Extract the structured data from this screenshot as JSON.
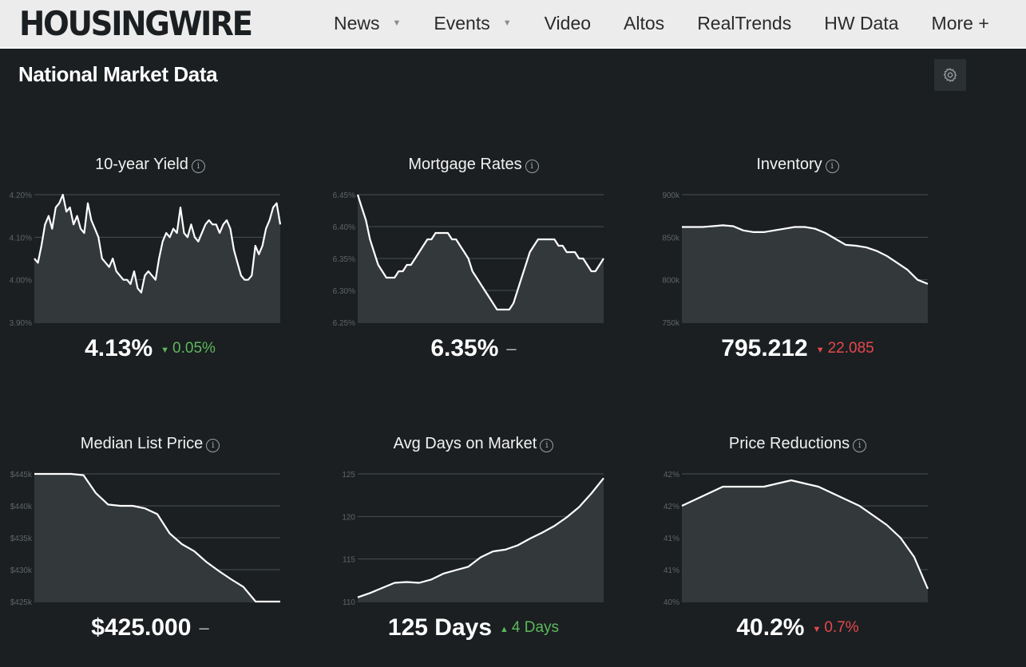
{
  "header": {
    "logo": "HOUSINGWIRE",
    "nav": [
      {
        "label": "News",
        "caret": "▼"
      },
      {
        "label": "Events",
        "caret": "▼"
      },
      {
        "label": "Video",
        "caret": ""
      },
      {
        "label": "Altos",
        "caret": ""
      },
      {
        "label": "RealTrends",
        "caret": ""
      },
      {
        "label": "HW Data",
        "caret": ""
      },
      {
        "label": "More +",
        "caret": ""
      }
    ]
  },
  "section": {
    "title": "National Market Data",
    "settings_icon": "gear-icon"
  },
  "colors": {
    "up": "#5cb85c",
    "down": "#e5484d",
    "line": "#ffffff",
    "area": "#33383b",
    "grid": "#4a4f52"
  },
  "cards": [
    {
      "title": "10-year Yield",
      "info": "i",
      "value": "4.13%",
      "change_arrow": "▼",
      "change_text": "0.05%",
      "trend": "up"
    },
    {
      "title": "Mortgage Rates",
      "info": "i",
      "value": "6.35%",
      "change_arrow": "",
      "change_text": "–",
      "trend": "flat"
    },
    {
      "title": "Inventory",
      "info": "i",
      "value": "795.212",
      "change_arrow": "▼",
      "change_text": "22.085",
      "trend": "down"
    },
    {
      "title": "Median List Price",
      "info": "i",
      "value": "$425.000",
      "change_arrow": "",
      "change_text": "–",
      "trend": "flat"
    },
    {
      "title": "Avg Days on Market",
      "info": "i",
      "value": "125 Days",
      "change_arrow": "▲",
      "change_text": "4 Days",
      "trend": "up"
    },
    {
      "title": "Price Reductions",
      "info": "i",
      "value": "40.2%",
      "change_arrow": "▼",
      "change_text": "0.7%",
      "trend": "down"
    }
  ],
  "chart_data": [
    {
      "type": "area",
      "title": "10-year Yield",
      "yticks": [
        "4.20%",
        "4.10%",
        "4.00%",
        "3.90%"
      ],
      "ylim": [
        3.9,
        4.2
      ],
      "values": [
        4.05,
        4.04,
        4.08,
        4.13,
        4.15,
        4.12,
        4.17,
        4.18,
        4.2,
        4.16,
        4.17,
        4.13,
        4.15,
        4.12,
        4.11,
        4.18,
        4.14,
        4.12,
        4.1,
        4.05,
        4.04,
        4.03,
        4.05,
        4.02,
        4.01,
        4.0,
        4.0,
        3.99,
        4.02,
        3.98,
        3.97,
        4.01,
        4.02,
        4.01,
        4.0,
        4.05,
        4.09,
        4.11,
        4.1,
        4.12,
        4.11,
        4.17,
        4.11,
        4.1,
        4.13,
        4.1,
        4.09,
        4.11,
        4.13,
        4.14,
        4.13,
        4.13,
        4.11,
        4.13,
        4.14,
        4.12,
        4.07,
        4.04,
        4.01,
        4.0,
        4.0,
        4.01,
        4.08,
        4.06,
        4.08,
        4.12,
        4.14,
        4.17,
        4.18,
        4.13
      ]
    },
    {
      "type": "area",
      "title": "Mortgage Rates",
      "yticks": [
        "6.45%",
        "6.40%",
        "6.35%",
        "6.30%",
        "6.25%"
      ],
      "ylim": [
        6.25,
        6.45
      ],
      "values": [
        6.45,
        6.43,
        6.41,
        6.38,
        6.36,
        6.34,
        6.33,
        6.32,
        6.32,
        6.32,
        6.33,
        6.33,
        6.34,
        6.34,
        6.35,
        6.36,
        6.37,
        6.38,
        6.38,
        6.39,
        6.39,
        6.39,
        6.39,
        6.38,
        6.38,
        6.37,
        6.36,
        6.35,
        6.33,
        6.32,
        6.31,
        6.3,
        6.29,
        6.28,
        6.27,
        6.27,
        6.27,
        6.27,
        6.28,
        6.3,
        6.32,
        6.34,
        6.36,
        6.37,
        6.38,
        6.38,
        6.38,
        6.38,
        6.38,
        6.37,
        6.37,
        6.36,
        6.36,
        6.36,
        6.35,
        6.35,
        6.34,
        6.33,
        6.33,
        6.34,
        6.35
      ]
    },
    {
      "type": "area",
      "title": "Inventory",
      "yticks": [
        "900k",
        "850k",
        "800k",
        "750k"
      ],
      "ylim": [
        750000,
        900000
      ],
      "values": [
        862000,
        862000,
        862000,
        863000,
        864000,
        863000,
        858000,
        856000,
        856000,
        858000,
        860000,
        862000,
        862000,
        860000,
        855000,
        848000,
        841000,
        840000,
        838000,
        834000,
        828000,
        820000,
        812000,
        800000,
        795212
      ]
    },
    {
      "type": "area",
      "title": "Median List Price",
      "yticks": [
        "$445k",
        "$440k",
        "$435k",
        "$430k",
        "$425k"
      ],
      "ylim": [
        425000,
        445000
      ],
      "values": [
        445000,
        445000,
        445000,
        445000,
        444800,
        442000,
        440200,
        440000,
        440000,
        439600,
        438700,
        435700,
        434000,
        432900,
        431200,
        429800,
        428500,
        427300,
        425000,
        425000,
        425000
      ]
    },
    {
      "type": "area",
      "title": "Avg Days on Market",
      "yticks": [
        "125",
        "120",
        "115",
        "110"
      ],
      "ylim": [
        110,
        125
      ],
      "values": [
        110.5,
        111.0,
        111.6,
        112.2,
        112.3,
        112.2,
        112.6,
        113.3,
        113.7,
        114.1,
        115.2,
        115.9,
        116.1,
        116.6,
        117.4,
        118.1,
        118.9,
        119.9,
        121.1,
        122.7,
        124.5
      ]
    },
    {
      "type": "area",
      "title": "Price Reductions",
      "yticks": [
        "42%",
        "42%",
        "41%",
        "41%",
        "40%"
      ],
      "ylim": [
        40.0,
        42.0
      ],
      "values": [
        41.5,
        41.6,
        41.7,
        41.8,
        41.8,
        41.8,
        41.8,
        41.85,
        41.9,
        41.85,
        41.8,
        41.7,
        41.6,
        41.5,
        41.35,
        41.2,
        41.0,
        40.7,
        40.2
      ]
    }
  ]
}
